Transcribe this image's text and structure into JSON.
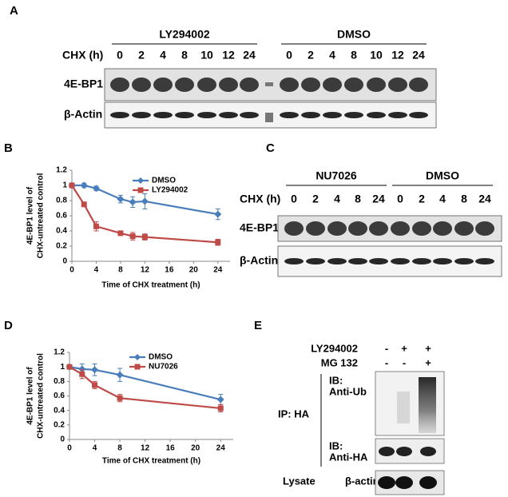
{
  "panel_a": {
    "letter": "A",
    "chx_label": "CHX  (h)",
    "groups": [
      {
        "name": "LY294002",
        "lanes": [
          "0",
          "2",
          "4",
          "8",
          "10",
          "12",
          "24"
        ]
      },
      {
        "name": "DMSO",
        "lanes": [
          "0",
          "2",
          "4",
          "8",
          "10",
          "12",
          "24"
        ]
      }
    ],
    "rows": [
      "4E-BP1",
      "β-Actin"
    ]
  },
  "panel_c": {
    "letter": "C",
    "chx_label": "CHX  (h)",
    "groups": [
      {
        "name": "NU7026",
        "lanes": [
          "0",
          "2",
          "4",
          "8",
          "24"
        ]
      },
      {
        "name": "DMSO",
        "lanes": [
          "0",
          "2",
          "4",
          "8",
          "24"
        ]
      }
    ],
    "rows": [
      "4E-BP1",
      "β-Actin"
    ]
  },
  "panel_e": {
    "letter": "E",
    "treatments": [
      {
        "name": "LY294002",
        "signs": [
          "-",
          "+",
          "+"
        ]
      },
      {
        "name": "MG 132",
        "signs": [
          "-",
          "-",
          "+"
        ]
      }
    ],
    "ip_label": "IP: HA",
    "blots": [
      {
        "lines": [
          "IB:",
          "Anti-Ub"
        ]
      },
      {
        "lines": [
          "IB:",
          "Anti-HA"
        ]
      }
    ],
    "lysate_label": "Lysate",
    "lysate_blot": "β-actin"
  },
  "chart_data": [
    {
      "type": "line",
      "panel_label": "B",
      "ylabel": [
        "4E-BP1 level  of",
        "CHX-untreated control"
      ],
      "xlabel": "Time of CHX treatment (h)",
      "xlim": [
        0,
        26
      ],
      "xticks": [
        0,
        4,
        8,
        12,
        16,
        20,
        24
      ],
      "ylim": [
        0,
        1.2
      ],
      "yticks": [
        0,
        0.2,
        0.4,
        0.6,
        0.8,
        1,
        1.2
      ],
      "grid": false,
      "legend": "upper right",
      "x": [
        0,
        2,
        4,
        8,
        10,
        12,
        24
      ],
      "series": [
        {
          "name": "DMSO",
          "color": "#4a7ebb",
          "marker": "diamond",
          "values": [
            1,
            1,
            0.96,
            0.82,
            0.78,
            0.79,
            0.62
          ],
          "errors": [
            0,
            0.03,
            0.03,
            0.05,
            0.07,
            0.1,
            0.07
          ]
        },
        {
          "name": "LY294002",
          "color": "#be4b48",
          "marker": "square",
          "values": [
            1,
            0.75,
            0.46,
            0.37,
            0.33,
            0.32,
            0.25
          ],
          "errors": [
            0,
            0.03,
            0.06,
            0.03,
            0.05,
            0.04,
            0.04
          ]
        }
      ]
    },
    {
      "type": "line",
      "panel_label": "D",
      "ylabel": [
        "4E-BP1 level  of",
        "CHX-untreated control"
      ],
      "xlabel": "Time of CHX treatment (h)",
      "xlim": [
        0,
        26
      ],
      "xticks": [
        0,
        4,
        8,
        12,
        16,
        20,
        24
      ],
      "ylim": [
        0,
        1.2
      ],
      "yticks": [
        0,
        0.2,
        0.4,
        0.6,
        0.8,
        1,
        1.2
      ],
      "grid": false,
      "legend": "upper right",
      "x": [
        0,
        2,
        4,
        8,
        24
      ],
      "series": [
        {
          "name": "DMSO",
          "color": "#4a7ebb",
          "marker": "diamond",
          "values": [
            1,
            0.97,
            0.96,
            0.89,
            0.55
          ],
          "errors": [
            0,
            0.07,
            0.08,
            0.09,
            0.07
          ]
        },
        {
          "name": "NU7026",
          "color": "#be4b48",
          "marker": "square",
          "values": [
            1,
            0.9,
            0.75,
            0.57,
            0.43
          ],
          "errors": [
            0,
            0.06,
            0.05,
            0.05,
            0.05
          ]
        }
      ]
    }
  ]
}
